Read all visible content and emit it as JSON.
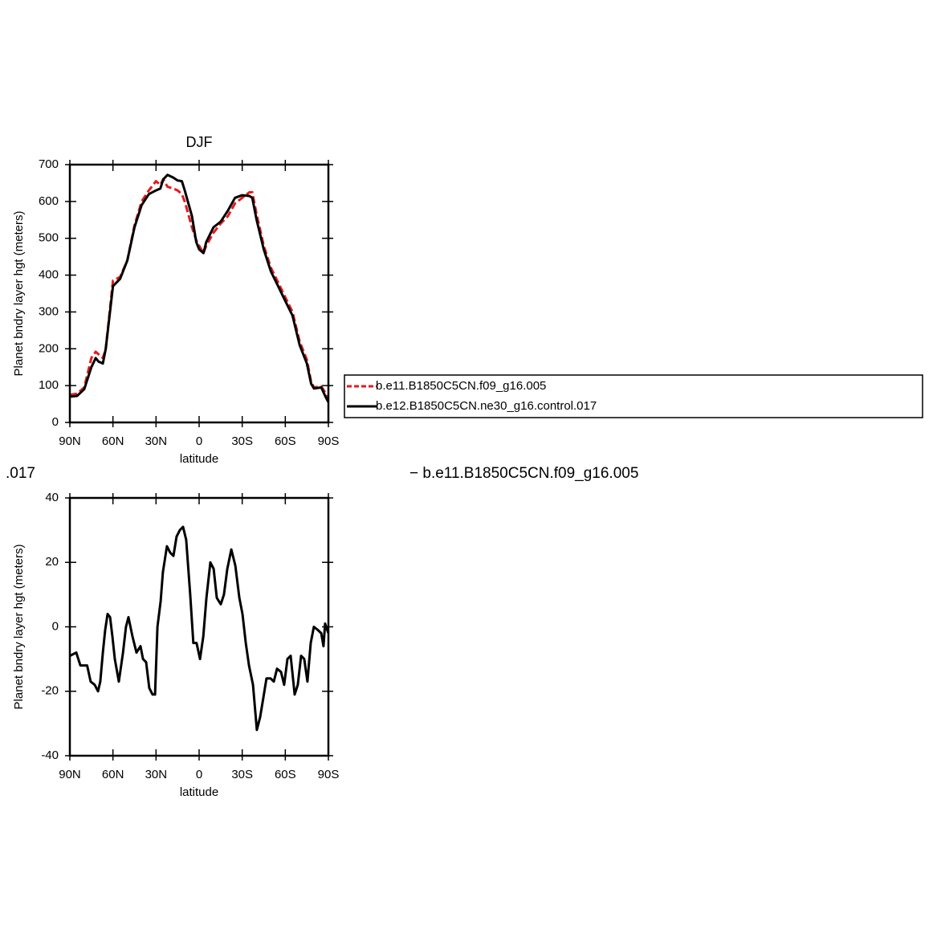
{
  "chart_data": [
    {
      "type": "line",
      "title": "DJF",
      "xlabel": "latitude",
      "ylabel": "Planet bndry layer hgt (meters)",
      "x": [
        90,
        85,
        80,
        75,
        72,
        70,
        67,
        65,
        60,
        55,
        50,
        45,
        40,
        35,
        30,
        27,
        25,
        22,
        18,
        15,
        12,
        10,
        5,
        2,
        0,
        -3,
        -5,
        -10,
        -15,
        -20,
        -25,
        -30,
        -35,
        -37,
        -40,
        -45,
        -50,
        -55,
        -60,
        -65,
        -70,
        -75,
        -78,
        -80,
        -85,
        -88,
        -90
      ],
      "series": [
        {
          "name": "b.e11.B1850C5CN.f09_g16.005",
          "color": "#e8191c",
          "line_style": "dashed",
          "values": [
            75,
            78,
            95,
            175,
            192,
            185,
            175,
            200,
            385,
            395,
            440,
            535,
            600,
            630,
            655,
            645,
            660,
            640,
            635,
            630,
            620,
            600,
            530,
            495,
            480,
            460,
            480,
            515,
            540,
            560,
            595,
            610,
            625,
            625,
            565,
            480,
            420,
            380,
            340,
            300,
            220,
            170,
            110,
            95,
            98,
            80,
            58
          ]
        },
        {
          "name": "b.e12.B1850C5CN.ne30_g16.control.017",
          "color": "#000000",
          "line_style": "solid",
          "values": [
            70,
            72,
            90,
            150,
            175,
            165,
            160,
            200,
            370,
            390,
            440,
            530,
            590,
            620,
            630,
            635,
            660,
            672,
            665,
            657,
            655,
            630,
            560,
            490,
            470,
            460,
            490,
            530,
            545,
            575,
            610,
            617,
            615,
            610,
            550,
            470,
            410,
            370,
            330,
            290,
            210,
            160,
            105,
            92,
            95,
            70,
            55
          ]
        }
      ],
      "xlim": [
        90,
        -90
      ],
      "xticks": [
        {
          "value": 90,
          "label": "90N"
        },
        {
          "value": 60,
          "label": "60N"
        },
        {
          "value": 30,
          "label": "30N"
        },
        0,
        {
          "value": -30,
          "label": "30S"
        },
        {
          "value": -60,
          "label": "60S"
        },
        {
          "value": -90,
          "label": "90S"
        }
      ],
      "ylim": [
        0,
        700
      ],
      "yticks": [
        0,
        100,
        200,
        300,
        400,
        500,
        600,
        700
      ],
      "legend": "right"
    },
    {
      "type": "line",
      "title_fragments": [
        ".017",
        "− b.e11.B1850C5CN.f09_g16.005"
      ],
      "xlabel": "latitude",
      "ylabel": "Planet bndry layer hgt (meters)",
      "x": [
        90,
        85.5,
        82.7,
        78,
        75.5,
        72.7,
        70.4,
        68.8,
        67,
        65.4,
        63.7,
        62,
        60.4,
        58.7,
        55.9,
        53,
        50.9,
        49.2,
        46.4,
        43.6,
        40.8,
        39.1,
        36.9,
        34.7,
        32.4,
        30.7,
        29,
        26.8,
        25.2,
        22.4,
        20.1,
        17.9,
        15.7,
        13.4,
        11.2,
        9,
        6.2,
        4,
        1.8,
        -0.6,
        -2.9,
        -5.1,
        -7.8,
        -10.1,
        -12.3,
        -15.1,
        -17.3,
        -19.6,
        -22.4,
        -25.2,
        -28,
        -30.2,
        -32.5,
        -34.7,
        -37.5,
        -40.2,
        -42.5,
        -44.7,
        -46.9,
        -49.7,
        -52,
        -54.2,
        -57,
        -59.2,
        -61.5,
        -63.7,
        -66.5,
        -68.7,
        -71,
        -73.2,
        -75.4,
        -77.7,
        -79.9,
        -82.7,
        -85,
        -86.6,
        -87.7,
        -90
      ],
      "values": [
        -9,
        -8,
        -12,
        -12,
        -17,
        -18,
        -20,
        -17,
        -8,
        -1,
        4,
        3,
        -3,
        -10,
        -17,
        -8,
        0,
        3,
        -3,
        -8,
        -6,
        -10,
        -11,
        -19,
        -21,
        -21,
        0,
        8,
        17,
        25,
        23,
        22,
        28,
        30,
        31,
        27,
        10,
        -5,
        -5,
        -10,
        -3,
        9,
        20,
        18,
        9,
        7,
        10,
        18,
        24,
        19,
        9,
        4,
        -5,
        -12,
        -18,
        -32,
        -28,
        -22,
        -16,
        -16,
        -17,
        -13,
        -14,
        -18,
        -10,
        -9,
        -21,
        -18,
        -9,
        -10,
        -17,
        -5,
        0,
        -1,
        -2,
        -6,
        1,
        -2
      ],
      "color": "#000000",
      "xlim": [
        90,
        -90
      ],
      "xticks": [
        {
          "value": 90,
          "label": "90N"
        },
        {
          "value": 60,
          "label": "60N"
        },
        {
          "value": 30,
          "label": "30N"
        },
        0,
        {
          "value": -30,
          "label": "30S"
        },
        {
          "value": -60,
          "label": "60S"
        },
        {
          "value": -90,
          "label": "90S"
        }
      ],
      "ylim": [
        -40,
        40
      ],
      "yticks": [
        -40,
        -20,
        0,
        20,
        40
      ]
    }
  ]
}
